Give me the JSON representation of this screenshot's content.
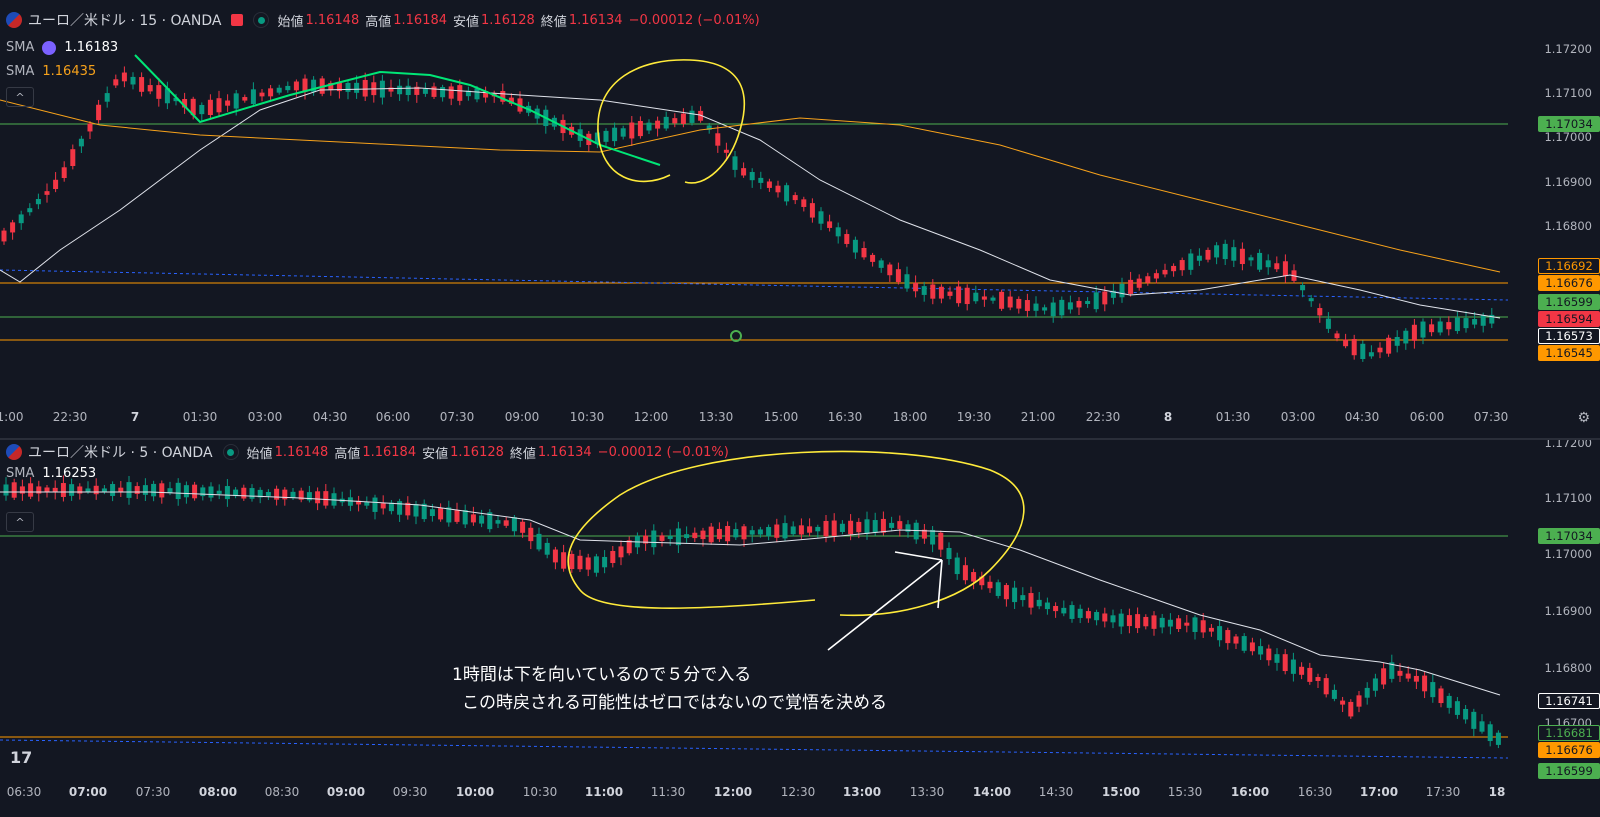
{
  "pane1": {
    "symbol": "ユーロ／米ドル · 15 · OANDA",
    "ohlc": [
      {
        "label": "始値",
        "value": "1.16148"
      },
      {
        "label": "高値",
        "value": "1.16184"
      },
      {
        "label": "安値",
        "value": "1.16128"
      },
      {
        "label": "終値",
        "value": "1.16134"
      },
      {
        "label": "",
        "value": "−0.00012 (−0.01%)"
      }
    ],
    "sma1": {
      "name": "SMA",
      "value": "1.16183"
    },
    "sma2": {
      "name": "SMA",
      "value": "1.16435"
    },
    "collapse_icon": "chevron-up-icon",
    "price_ticks": [
      "1.17200",
      "1.17100",
      "1.17000",
      "1.16900",
      "1.16800"
    ],
    "price_labels": [
      {
        "text": "1.17034",
        "kind": "green"
      },
      {
        "text": "1.16692",
        "kind": "orange-outline"
      },
      {
        "text": "1.16676",
        "kind": "orange"
      },
      {
        "text": "1.16599",
        "kind": "green"
      },
      {
        "text": "1.16594",
        "kind": "red"
      },
      {
        "text": "1.16573",
        "kind": "white"
      },
      {
        "text": "1.16545",
        "kind": "orange"
      }
    ],
    "time_ticks": [
      "1:00",
      "22:30",
      "7",
      "01:30",
      "03:00",
      "04:30",
      "06:00",
      "07:30",
      "09:00",
      "10:30",
      "12:00",
      "13:30",
      "15:00",
      "16:30",
      "18:00",
      "19:30",
      "21:00",
      "22:30",
      "8",
      "01:30",
      "03:00",
      "04:30",
      "06:00",
      "07:30"
    ],
    "bold_ticks": [
      "7",
      "8"
    ]
  },
  "pane2": {
    "symbol": "ユーロ／米ドル · 5 · OANDA",
    "ohlc": [
      {
        "label": "始値",
        "value": "1.16148"
      },
      {
        "label": "高値",
        "value": "1.16184"
      },
      {
        "label": "安値",
        "value": "1.16128"
      },
      {
        "label": "終値",
        "value": "1.16134"
      },
      {
        "label": "",
        "value": "−0.00012 (−0.01%)"
      }
    ],
    "sma1": {
      "name": "SMA",
      "value": "1.16253"
    },
    "collapse_icon": "chevron-up-icon",
    "price_ticks": [
      "1.17200",
      "1.17100",
      "1.17000",
      "1.16900",
      "1.16800",
      "1.16700"
    ],
    "price_labels": [
      {
        "text": "1.17034",
        "kind": "green"
      },
      {
        "text": "1.16741",
        "kind": "white"
      },
      {
        "text": "1.16681",
        "kind": "green-outline"
      },
      {
        "text": "1.16676",
        "kind": "orange"
      },
      {
        "text": "1.16599",
        "kind": "green"
      }
    ],
    "time_ticks": [
      "06:30",
      "07:00",
      "07:30",
      "08:00",
      "08:30",
      "09:00",
      "09:30",
      "10:00",
      "10:30",
      "11:00",
      "11:30",
      "12:00",
      "12:30",
      "13:00",
      "13:30",
      "14:00",
      "14:30",
      "15:00",
      "15:30",
      "16:00",
      "16:30",
      "17:00",
      "17:30",
      "18"
    ],
    "bold_ticks": [
      "07:00",
      "08:00",
      "09:00",
      "10:00",
      "11:00",
      "12:00",
      "13:00",
      "14:00",
      "15:00",
      "16:00",
      "17:00",
      "18"
    ],
    "annotation_line1": "1時間は下を向いているので５分で入る",
    "annotation_line2": "この時戻される可能性はゼロではないので覚悟を決める"
  },
  "logo": "17",
  "colors": {
    "background": "#131722",
    "up": "#089981",
    "down": "#f23645",
    "sma_white": "#e0e3eb",
    "sma_orange": "#f7a21b",
    "level_green": "#4caf50",
    "level_orange": "#ff9800",
    "highlight_yellow": "#ffeb3b",
    "trend_green": "#00e676"
  }
}
